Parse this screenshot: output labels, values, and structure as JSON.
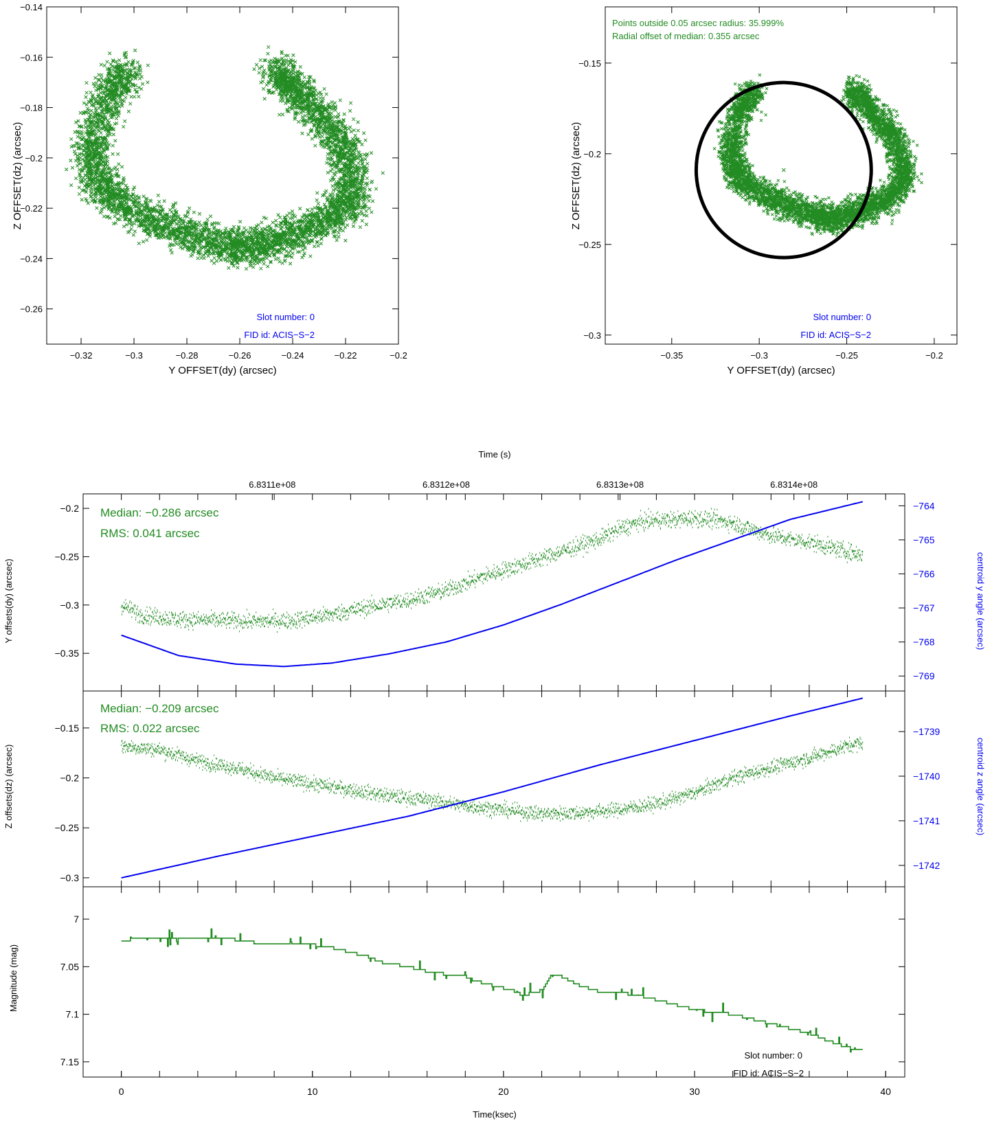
{
  "colors": {
    "green": "#228B22",
    "blue": "#0000EE",
    "black": "#000000"
  },
  "chart_data": [
    {
      "id": "yz_scatter_left",
      "type": "scatter",
      "xlabel": "Y OFFSET(dy) (arcsec)",
      "ylabel": "Z OFFSET(dz) (arcsec)",
      "xlim": [
        -0.333,
        -0.2
      ],
      "ylim": [
        -0.274,
        -0.14
      ],
      "xticks": [
        -0.32,
        -0.3,
        -0.28,
        -0.26,
        -0.24,
        -0.22,
        -0.2
      ],
      "xticklabels": [
        "−0.32",
        "−0.3",
        "−0.28",
        "−0.26",
        "−0.24",
        "−0.22",
        "−0.2"
      ],
      "yticks": [
        -0.14,
        -0.16,
        -0.18,
        -0.2,
        -0.22,
        -0.24,
        -0.26
      ],
      "yticklabels": [
        "−0.14",
        "−0.16",
        "−0.18",
        "−0.2",
        "−0.22",
        "−0.24",
        "−0.26"
      ],
      "annotations": [
        "Slot number: 0",
        "FID id: ACIS−S−2"
      ],
      "path": [
        [
          -0.302,
          -0.165
        ],
        [
          -0.308,
          -0.172
        ],
        [
          -0.313,
          -0.182
        ],
        [
          -0.316,
          -0.195
        ],
        [
          -0.315,
          -0.205
        ],
        [
          -0.311,
          -0.213
        ],
        [
          -0.305,
          -0.218
        ],
        [
          -0.295,
          -0.224
        ],
        [
          -0.285,
          -0.228
        ],
        [
          -0.275,
          -0.232
        ],
        [
          -0.265,
          -0.235
        ],
        [
          -0.258,
          -0.236
        ],
        [
          -0.25,
          -0.234
        ],
        [
          -0.242,
          -0.231
        ],
        [
          -0.234,
          -0.228
        ],
        [
          -0.225,
          -0.224
        ],
        [
          -0.219,
          -0.218
        ],
        [
          -0.217,
          -0.21
        ],
        [
          -0.219,
          -0.2
        ],
        [
          -0.224,
          -0.19
        ],
        [
          -0.23,
          -0.182
        ],
        [
          -0.237,
          -0.175
        ],
        [
          -0.243,
          -0.169
        ],
        [
          -0.246,
          -0.164
        ]
      ],
      "n_points": 5000
    },
    {
      "id": "yz_scatter_right",
      "type": "scatter",
      "xlabel": "Y OFFSET(dy) (arcsec)",
      "ylabel": "Z OFFSET(dz) (arcsec)",
      "xlim": [
        -0.388,
        -0.187
      ],
      "ylim": [
        -0.305,
        -0.119
      ],
      "xticks": [
        -0.35,
        -0.3,
        -0.25,
        -0.2
      ],
      "xticklabels": [
        "−0.35",
        "−0.3",
        "−0.25",
        "−0.2"
      ],
      "yticks": [
        -0.15,
        -0.2,
        -0.25,
        -0.3
      ],
      "yticklabels": [
        "−0.15",
        "−0.2",
        "−0.25",
        "−0.3"
      ],
      "annotations": [
        "Points outside 0.05 arcsec radius: 35.999%",
        "Radial offset of median: 0.355 arcsec",
        "Slot number: 0",
        "FID id: ACIS−S−2"
      ],
      "median_point": [
        -0.286,
        -0.209
      ],
      "circle_radius": 0.05
    },
    {
      "id": "y_offsets_timeseries",
      "type": "line",
      "top_axis_label": "Time (s)",
      "top_xticklabels": [
        "6.8311e+08",
        "6.8312e+08",
        "6.8313e+08",
        "6.8314e+08"
      ],
      "top_xticks_ksec": [
        7.9,
        17.0,
        26.1,
        35.2
      ],
      "xlim": [
        -2,
        41
      ],
      "ylabel": "Y offsets(dy) (arcsec)",
      "ylim": [
        -0.389,
        -0.185
      ],
      "yticks": [
        -0.2,
        -0.25,
        -0.3,
        -0.35
      ],
      "yticklabels": [
        "−0.2",
        "−0.25",
        "−0.3",
        "−0.35"
      ],
      "y2label": "centroid y angle (arcsec)",
      "y2lim": [
        -769.44,
        -763.65
      ],
      "y2ticks": [
        -764,
        -765,
        -766,
        -767,
        -768,
        -769
      ],
      "y2ticklabels": [
        "−764",
        "−765",
        "−766",
        "−767",
        "−768",
        "−769"
      ],
      "annotations": [
        "Median: −0.286 arcsec",
        "RMS: 0.041 arcsec"
      ],
      "series": [
        {
          "color": "green",
          "x": [
            0,
            1,
            3,
            5,
            7,
            9,
            11,
            13,
            15,
            17,
            19,
            21,
            23,
            25,
            26,
            27,
            28,
            29,
            30,
            31,
            32,
            33,
            34,
            35,
            36,
            37,
            38,
            38.8
          ],
          "y": [
            -0.3,
            -0.31,
            -0.315,
            -0.316,
            -0.317,
            -0.316,
            -0.31,
            -0.302,
            -0.295,
            -0.285,
            -0.27,
            -0.258,
            -0.245,
            -0.232,
            -0.222,
            -0.215,
            -0.212,
            -0.212,
            -0.21,
            -0.212,
            -0.215,
            -0.222,
            -0.228,
            -0.232,
            -0.235,
            -0.24,
            -0.245,
            -0.248
          ]
        },
        {
          "color": "blue",
          "axis": "y2",
          "x": [
            0,
            3,
            6,
            8.5,
            11,
            14,
            17,
            20,
            23,
            26,
            29,
            32,
            35,
            38.8
          ],
          "y": [
            -767.8,
            -768.4,
            -768.65,
            -768.72,
            -768.62,
            -768.35,
            -768.0,
            -767.5,
            -766.9,
            -766.25,
            -765.6,
            -765.0,
            -764.4,
            -763.88
          ]
        }
      ]
    },
    {
      "id": "z_offsets_timeseries",
      "type": "line",
      "xlim": [
        -2,
        41
      ],
      "ylabel": "Z offsets(dz) (arcsec)",
      "ylim": [
        -0.309,
        -0.113
      ],
      "yticks": [
        -0.15,
        -0.2,
        -0.25,
        -0.3
      ],
      "yticklabels": [
        "−0.15",
        "−0.2",
        "−0.25",
        "−0.3"
      ],
      "y2label": "centroid z angle (arcsec)",
      "y2lim": [
        -1742.48,
        -1738.09
      ],
      "y2ticks": [
        -1739,
        -1740,
        -1741,
        -1742
      ],
      "y2ticklabels": [
        "−1739",
        "−1740",
        "−1741",
        "−1742"
      ],
      "annotations": [
        "Median: −0.209 arcsec",
        "RMS: 0.022 arcsec"
      ],
      "series": [
        {
          "color": "green",
          "x": [
            0,
            2,
            4,
            6,
            8,
            10,
            12,
            14,
            16,
            18,
            20,
            22,
            24,
            26,
            28,
            30,
            32,
            34,
            36,
            38,
            38.8
          ],
          "y": [
            -0.168,
            -0.172,
            -0.183,
            -0.19,
            -0.2,
            -0.206,
            -0.212,
            -0.218,
            -0.222,
            -0.228,
            -0.232,
            -0.236,
            -0.235,
            -0.232,
            -0.226,
            -0.215,
            -0.2,
            -0.19,
            -0.18,
            -0.168,
            -0.165
          ]
        },
        {
          "color": "blue",
          "axis": "y2",
          "x": [
            0,
            5,
            10,
            15,
            20,
            25,
            30,
            35,
            38.8
          ],
          "y": [
            -1742.28,
            -1741.8,
            -1741.35,
            -1740.9,
            -1740.35,
            -1739.75,
            -1739.2,
            -1738.65,
            -1738.25
          ]
        }
      ]
    },
    {
      "id": "magnitude_timeseries",
      "type": "line",
      "xlabel": "Time(ksec)",
      "xlim": [
        -2,
        41
      ],
      "xticks": [
        0,
        10,
        20,
        30,
        40
      ],
      "xticklabels": [
        "0",
        "10",
        "20",
        "30",
        "40"
      ],
      "ylabel": "Magnitude (mag)",
      "ylim": [
        7.166,
        6.966
      ],
      "yticks": [
        7,
        7.05,
        7.1,
        7.15
      ],
      "yticklabels": [
        "7",
        "7.05",
        "7.1",
        "7.15"
      ],
      "annotations": [
        "Slot number: 0",
        "FID id: ACIS−S−2"
      ],
      "series": [
        {
          "color": "green",
          "x": [
            0,
            1,
            2,
            3,
            4.2,
            6.5,
            7,
            9,
            10,
            11,
            12,
            13,
            13.5,
            15,
            16,
            17,
            18,
            18.5,
            19.5,
            20.5,
            21,
            22,
            22.5,
            23,
            24,
            25,
            26,
            27,
            28,
            29,
            30,
            31,
            32,
            33,
            34,
            35,
            36,
            37,
            38,
            38.8
          ],
          "y": [
            7.023,
            7.02,
            7.02,
            7.02,
            7.02,
            7.022,
            7.025,
            7.026,
            7.027,
            7.03,
            7.035,
            7.04,
            7.045,
            7.05,
            7.055,
            7.058,
            7.06,
            7.065,
            7.07,
            7.075,
            7.08,
            7.075,
            7.058,
            7.06,
            7.07,
            7.076,
            7.077,
            7.08,
            7.085,
            7.09,
            7.095,
            7.098,
            7.1,
            7.105,
            7.11,
            7.115,
            7.12,
            7.128,
            7.135,
            7.138
          ]
        }
      ]
    }
  ]
}
